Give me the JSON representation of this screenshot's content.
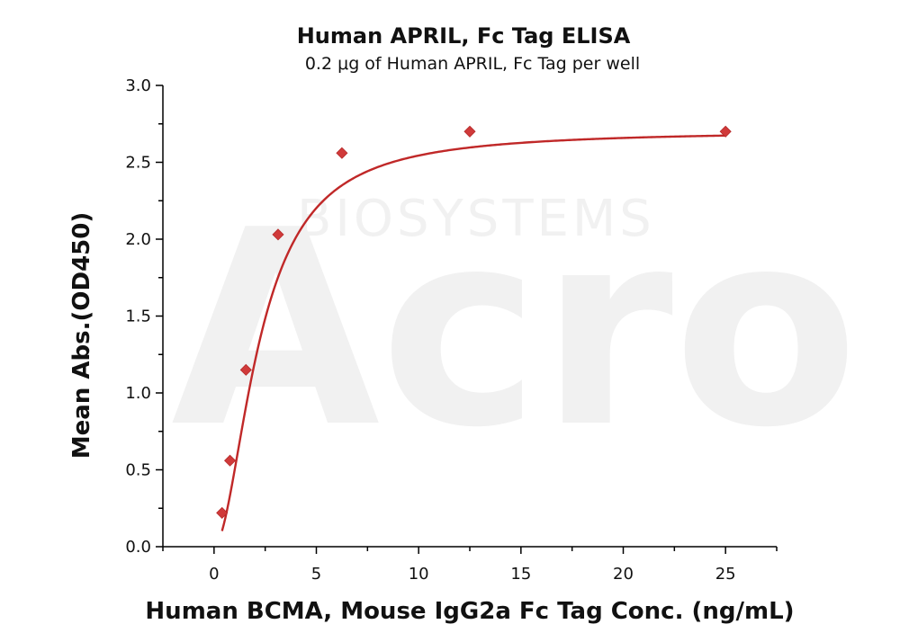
{
  "chart_data": {
    "type": "scatter",
    "title": "Human APRIL, Fc Tag ELISA",
    "subtitle": "0.2 μg of Human APRIL, Fc Tag per well",
    "xlabel": "Human BCMA, Mouse IgG2a Fc Tag Conc. (ng/mL)",
    "ylabel": "Mean Abs.(OD450)",
    "xlim": [
      -2.5,
      27.5
    ],
    "ylim": [
      0.0,
      3.0
    ],
    "x_ticks": [
      0,
      5,
      10,
      15,
      20,
      25
    ],
    "x_tick_labels": [
      "0",
      "5",
      "10",
      "15",
      "20",
      "25"
    ],
    "y_ticks": [
      0.0,
      0.5,
      1.0,
      1.5,
      2.0,
      2.5,
      3.0
    ],
    "y_tick_labels": [
      "0.0",
      "0.5",
      "1.0",
      "1.5",
      "2.0",
      "2.5",
      "3.0"
    ],
    "grid": false,
    "series": [
      {
        "marker": "diamond",
        "color": "#d03a3a",
        "x": [
          0.39,
          0.78,
          1.56,
          3.13,
          6.25,
          12.5,
          25
        ],
        "y": [
          0.22,
          0.56,
          1.15,
          2.03,
          2.56,
          2.7,
          2.7
        ]
      }
    ],
    "fit_curve": {
      "color": "#c02828",
      "model": "4PL",
      "bottom": 0.0,
      "top": 2.705,
      "ec50": 2.25,
      "hill": 1.85
    }
  },
  "watermark": {
    "brand": "Acro",
    "sub": "BIOSYSTEMS"
  }
}
